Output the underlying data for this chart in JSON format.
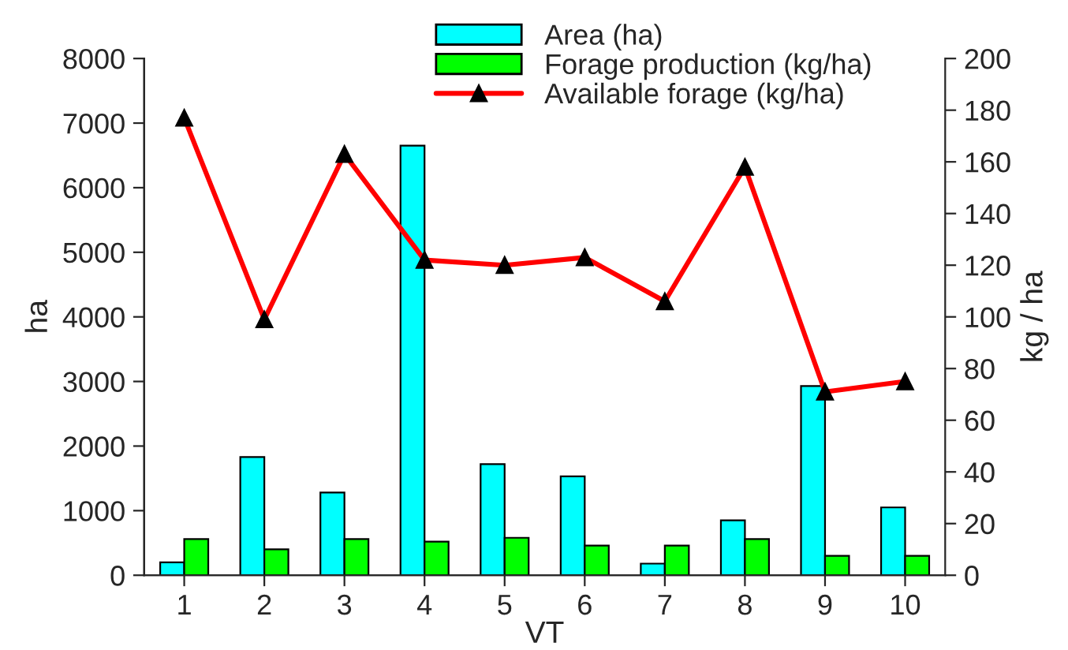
{
  "chart_data": {
    "type": "bar",
    "xlabel": "VT",
    "ylabel": "ha",
    "y2label": "kg / ha",
    "categories": [
      "1",
      "2",
      "3",
      "4",
      "5",
      "6",
      "7",
      "8",
      "9",
      "10"
    ],
    "series": [
      {
        "name": "Area (ha)",
        "color": "#00ffff",
        "values": [
          200,
          1830,
          1280,
          6650,
          1720,
          1530,
          180,
          850,
          2930,
          1050
        ]
      },
      {
        "name": "Forage production (kg/ha)",
        "color": "#00ff00",
        "axis": "y2",
        "values": [
          14,
          10,
          14,
          13,
          14.5,
          11.5,
          11.5,
          14,
          7.5,
          7.5
        ]
      },
      {
        "name": "Available forage (kg/ha)",
        "type": "line",
        "color": "#ff0000",
        "axis": "y2",
        "marker": "triangle",
        "values": [
          177,
          99,
          163,
          122,
          120,
          123,
          106,
          158,
          71,
          75
        ]
      }
    ],
    "ylim": [
      0,
      8000
    ],
    "yticks": [
      0,
      1000,
      2000,
      3000,
      4000,
      5000,
      6000,
      7000,
      8000
    ],
    "y2lim": [
      0,
      200
    ],
    "y2ticks": [
      0,
      20,
      40,
      60,
      80,
      100,
      120,
      140,
      160,
      180,
      200
    ],
    "grid": false,
    "legend": "top right"
  }
}
